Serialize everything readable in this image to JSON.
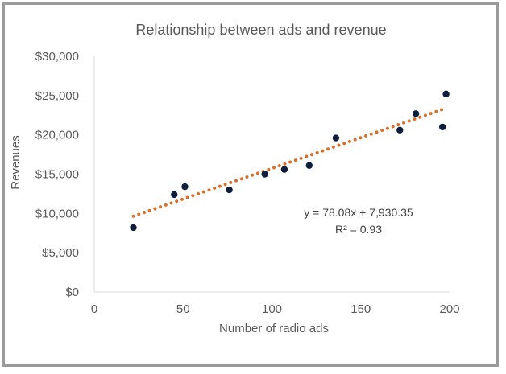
{
  "chart_data": {
    "type": "scatter",
    "title": "Relationship between ads and revenue",
    "xlabel": "Number of radio ads",
    "ylabel": "Revenues",
    "xlim": [
      0,
      200
    ],
    "ylim": [
      0,
      30000
    ],
    "x_ticks": [
      0,
      50,
      100,
      150,
      200
    ],
    "x_tick_labels": [
      "0",
      "50",
      "100",
      "150",
      "200"
    ],
    "y_ticks": [
      0,
      5000,
      10000,
      15000,
      20000,
      25000,
      30000
    ],
    "y_tick_labels": [
      "$0",
      "$5,000",
      "$10,000",
      "$15,000",
      "$20,000",
      "$25,000",
      "$30,000"
    ],
    "grid": false,
    "series": [
      {
        "name": "Revenue",
        "color": "#0d1f3c",
        "x": [
          22,
          45,
          51,
          76,
          96,
          107,
          121,
          136,
          172,
          181,
          196,
          198
        ],
        "y": [
          8200,
          12400,
          13400,
          13000,
          15000,
          15600,
          16100,
          19600,
          20600,
          22700,
          21000,
          25200
        ]
      }
    ],
    "trendline": {
      "type": "linear",
      "color": "#d9702a",
      "slope": 78.08,
      "intercept": 7930.35,
      "x_range": [
        22,
        196
      ],
      "equation_label": "y = 78.08x + 7,930.35",
      "r2_label": "R² = 0.93"
    }
  }
}
